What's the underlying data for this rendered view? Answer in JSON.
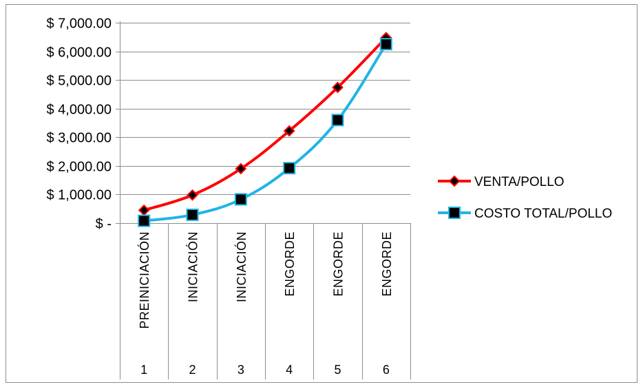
{
  "chart_data": {
    "type": "line",
    "title": "",
    "xlabel": "",
    "ylabel": "",
    "ylim": [
      0,
      7000
    ],
    "grid": true,
    "legend_placement": "right",
    "y_ticks": [
      {
        "value": 0,
        "label": "$ -"
      },
      {
        "value": 1000,
        "label": "$ 1,000.00"
      },
      {
        "value": 2000,
        "label": "$ 2,000.00"
      },
      {
        "value": 3000,
        "label": "$ 3,000.00"
      },
      {
        "value": 4000,
        "label": "$ 4,000.00"
      },
      {
        "value": 5000,
        "label": "$ 5,000.00"
      },
      {
        "value": 6000,
        "label": "$ 6,000.00"
      },
      {
        "value": 7000,
        "label": "$ 7,000.00"
      }
    ],
    "x": [
      "1",
      "2",
      "3",
      "4",
      "5",
      "6"
    ],
    "categories": [
      "PREINICIACIÓN",
      "INICIACIÓN",
      "INICIACIÓN",
      "ENGORDE",
      "ENGORDE",
      "ENGORDE"
    ],
    "series": [
      {
        "name": "VENTA/POLLO",
        "color": "#ff0000",
        "marker": "diamond",
        "values": [
          450,
          980,
          1900,
          3220,
          4740,
          6480
        ]
      },
      {
        "name": "COSTO TOTAL/POLLO",
        "color": "#1fb4e6",
        "marker": "square",
        "values": [
          80,
          290,
          830,
          1920,
          3600,
          6250
        ]
      }
    ]
  }
}
